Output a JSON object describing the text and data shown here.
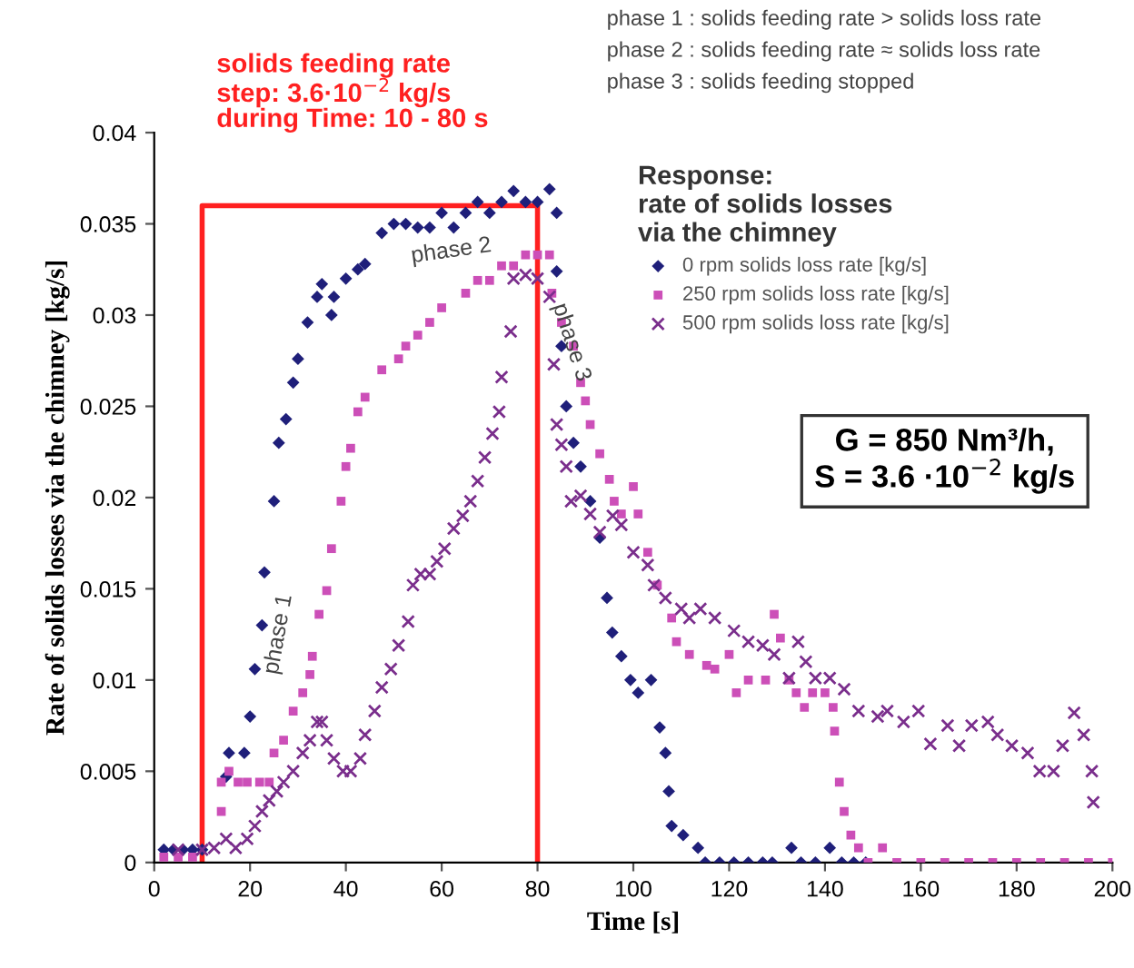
{
  "chart_data": {
    "type": "scatter",
    "xlabel": "Time [s]",
    "ylabel": "Rate of solids losses via the chimney [kg/s]",
    "legend_title": "Response:\nrate of solids losses\nvia the chimney",
    "legend": "top right",
    "grid": false,
    "xlim": [
      0,
      200
    ],
    "xticks": [
      0,
      20,
      40,
      60,
      80,
      100,
      120,
      140,
      160,
      180,
      200
    ],
    "ylim": [
      0,
      0.04
    ],
    "yticks": [
      0,
      0.005,
      0.01,
      0.015,
      0.02,
      0.025,
      0.03,
      0.035,
      0.04
    ],
    "series": [
      {
        "marker": "diamond",
        "name": "0 rpm solids loss rate [kg/s]",
        "color": "#1f1f7a",
        "x": [
          2,
          4,
          6,
          8,
          10,
          15,
          15.6,
          18.8,
          20,
          21,
          22.5,
          23,
          25,
          26,
          27.5,
          29,
          30,
          32,
          34,
          35,
          37,
          37.5,
          40,
          42.5,
          44,
          47.5,
          50,
          52.5,
          55,
          57.5,
          60,
          62.5,
          65,
          67.5,
          70,
          72.5,
          75,
          77.5,
          80,
          82.5,
          84,
          84,
          85,
          86,
          87.5,
          89,
          91,
          93,
          94.5,
          95.6,
          97.5,
          99.4,
          101,
          103.7,
          105.5,
          106.7,
          107.4,
          108,
          110.4,
          113.5,
          115,
          118,
          121,
          124,
          127,
          129,
          133,
          135,
          138,
          141,
          143.5,
          146,
          148.5
        ],
        "values": [
          0.0007,
          0.0007,
          0.0007,
          0.0007,
          0.0007,
          0.0047,
          0.006,
          0.006,
          0.008,
          0.0106,
          0.013,
          0.0159,
          0.0198,
          0.023,
          0.0243,
          0.0263,
          0.0276,
          0.0296,
          0.031,
          0.0317,
          0.03,
          0.031,
          0.032,
          0.0325,
          0.0328,
          0.0345,
          0.035,
          0.035,
          0.0348,
          0.0348,
          0.0356,
          0.0348,
          0.0356,
          0.0362,
          0.0356,
          0.0362,
          0.0368,
          0.0362,
          0.0362,
          0.0369,
          0.0356,
          0.0324,
          0.0283,
          0.025,
          0.023,
          0.0217,
          0.0198,
          0.0178,
          0.0145,
          0.0126,
          0.0113,
          0.01,
          0.0093,
          0.01,
          0.0074,
          0.006,
          0.0039,
          0.002,
          0.0015,
          0.0008,
          0,
          0,
          0,
          0,
          0,
          0,
          0.0008,
          0,
          0,
          0.0008,
          0,
          0,
          0
        ]
      },
      {
        "marker": "square",
        "name": "250 rpm solids loss rate [kg/s]",
        "color": "#cc4fb8",
        "x": [
          2,
          5,
          8,
          14,
          14,
          15.6,
          17.5,
          19.4,
          22,
          24,
          25,
          27,
          29,
          31,
          32.5,
          33,
          34.4,
          36,
          37,
          39,
          40,
          41,
          42.5,
          44,
          47.5,
          51,
          52.5,
          55,
          57.5,
          60,
          65,
          67.5,
          70,
          72.5,
          75,
          77.5,
          80,
          82.5,
          83,
          85,
          87.5,
          89,
          90,
          91,
          93,
          95,
          96,
          97.5,
          100,
          101,
          103,
          105,
          108,
          109,
          111.7,
          115.3,
          117,
          120,
          121.5,
          124,
          127.6,
          129.4,
          130.7,
          132.5,
          134,
          135.7,
          137.4,
          140,
          141.7,
          142,
          143,
          144,
          145.4,
          147,
          149,
          152,
          155,
          160,
          165,
          170,
          175,
          180,
          185,
          190,
          195,
          200
        ],
        "values": [
          0.0003,
          0.0003,
          0.0003,
          0.0028,
          0.0044,
          0.005,
          0.0044,
          0.0044,
          0.0044,
          0.0044,
          0.006,
          0.0067,
          0.0083,
          0.0093,
          0.0103,
          0.0113,
          0.0136,
          0.0149,
          0.0172,
          0.0198,
          0.0217,
          0.0227,
          0.0247,
          0.0255,
          0.027,
          0.0276,
          0.0283,
          0.0289,
          0.0296,
          0.0304,
          0.0312,
          0.0319,
          0.0319,
          0.0327,
          0.0327,
          0.0333,
          0.0333,
          0.0333,
          0.0312,
          0.0296,
          0.0283,
          0.0263,
          0.0253,
          0.024,
          0.0224,
          0.021,
          0.0198,
          0.0191,
          0.0206,
          0.0191,
          0.017,
          0.0152,
          0.0134,
          0.0121,
          0.0114,
          0.0108,
          0.0106,
          0.0114,
          0.0093,
          0.01,
          0.01,
          0.0136,
          0.0123,
          0.01,
          0.0093,
          0.0085,
          0.0093,
          0.0093,
          0.0085,
          0.0072,
          0.0044,
          0.0028,
          0.0015,
          0.0008,
          0,
          0.0008,
          0,
          0,
          0,
          0,
          0,
          0,
          0,
          0,
          0,
          0
        ]
      },
      {
        "marker": "cross",
        "name": "500 rpm solids loss rate [kg/s]",
        "color": "#7a2e8c",
        "x": [
          5,
          10,
          12.5,
          15,
          17,
          19.4,
          21,
          22.5,
          24,
          25.6,
          27,
          29,
          31,
          32.5,
          34,
          35,
          36,
          37.5,
          39.4,
          41,
          43,
          44,
          46,
          47.5,
          49.4,
          51,
          53,
          54,
          55.6,
          57.5,
          59,
          60.6,
          62.5,
          64.4,
          66,
          67.5,
          69,
          70.6,
          72,
          72.5,
          74.4,
          75,
          77.5,
          80,
          82.5,
          83.4,
          84,
          85,
          86,
          87,
          89,
          91,
          93,
          95.7,
          97.5,
          100,
          103,
          104.3,
          106.7,
          110,
          111.7,
          114,
          117,
          121,
          124,
          127,
          129.4,
          132.5,
          134.4,
          136,
          138,
          141,
          144,
          147,
          151,
          153,
          156.4,
          159.5,
          162,
          165.6,
          168,
          170.6,
          174,
          176,
          179,
          182.3,
          184.8,
          187.7,
          189.6,
          192,
          194,
          195.7,
          196
        ],
        "values": [
          0.0007,
          0.0007,
          0.0008,
          0.0013,
          0.0008,
          0.0013,
          0.002,
          0.0028,
          0.0034,
          0.0039,
          0.0044,
          0.005,
          0.006,
          0.0067,
          0.0077,
          0.0077,
          0.0067,
          0.0057,
          0.005,
          0.005,
          0.0057,
          0.007,
          0.0083,
          0.0096,
          0.0106,
          0.0119,
          0.0132,
          0.0152,
          0.0158,
          0.0158,
          0.0165,
          0.0172,
          0.0183,
          0.019,
          0.0198,
          0.0209,
          0.0222,
          0.0235,
          0.0247,
          0.0266,
          0.0291,
          0.032,
          0.0322,
          0.032,
          0.031,
          0.0273,
          0.024,
          0.0229,
          0.0217,
          0.0198,
          0.0201,
          0.0191,
          0.0181,
          0.019,
          0.0185,
          0.017,
          0.0163,
          0.0152,
          0.0145,
          0.0139,
          0.0134,
          0.0139,
          0.0134,
          0.0127,
          0.0121,
          0.0119,
          0.0114,
          0.0101,
          0.0121,
          0.011,
          0.0101,
          0.0101,
          0.0095,
          0.0083,
          0.008,
          0.0083,
          0.0077,
          0.0083,
          0.0065,
          0.0075,
          0.0064,
          0.0075,
          0.0077,
          0.007,
          0.0064,
          0.006,
          0.005,
          0.005,
          0.0064,
          0.0082,
          0.007,
          0.005,
          0.0033
        ]
      },
      {
        "type": "line",
        "marker": "none",
        "color": "#ff2020",
        "x": [
          10,
          10,
          80,
          80
        ],
        "values": [
          0,
          0.036,
          0.036,
          0
        ]
      }
    ],
    "annotations": [
      "solids feeding rate\nstep: 3.6·10$^{−2}$ kg/s\nduring Time: 10 - 80 s",
      "phase 1 : solids feeding rate > solids loss rate\nphase 2 : solids feeding rate ≈ solids loss rate\nphase 3 : solids feeding stopped",
      "G = 850 Nm³/h,\nS = 3.6 ·10$^{−2}$ kg/s",
      "phase 1",
      "phase 2",
      "phase 3"
    ]
  }
}
